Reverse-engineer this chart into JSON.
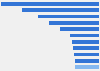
{
  "values": [
    2997.1,
    2352.6,
    1861.82,
    1545.49,
    1190.95,
    879.82,
    831.83,
    799.36,
    778.68,
    753.47,
    724.61
  ],
  "max_val": 3000,
  "bar_color": "#3375d6",
  "bar_color_last": "#85b8f0",
  "background_color": "#f0f0f0",
  "n_bars": 11
}
